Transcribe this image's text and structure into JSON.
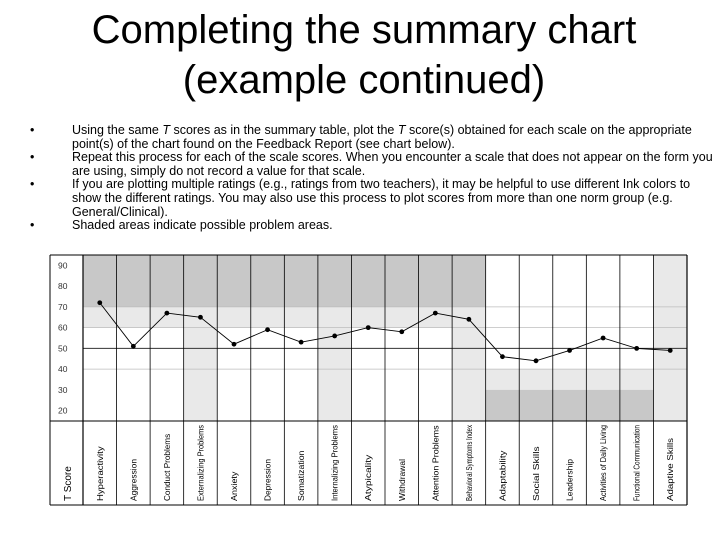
{
  "slide": {
    "title_line1": "Completing the summary chart",
    "title_line2": "(example continued)",
    "bullets": [
      {
        "parts": [
          "Using the same ",
          "T",
          " scores as in the summary table, plot the ",
          "T",
          " score(s) obtained for each scale on the appropriate point(s) of the chart found on the Feedback Report (see chart below)."
        ]
      },
      {
        "parts": [
          "Repeat this process for each of the scale scores. When you encounter a scale that does not appear on the form you are using, simply do not record a value for that scale."
        ]
      },
      {
        "parts": [
          "If you are plotting multiple ratings (e.g., ratings from two teachers), it may be helpful to use different Ink colors to show the different ratings. You may also use this process to plot scores from more than one norm group (e.g. General/Clinical)."
        ]
      },
      {
        "parts": [
          "Shaded areas indicate possible problem areas."
        ]
      }
    ]
  },
  "chart_data": {
    "type": "line",
    "ylabel": "T Score",
    "ylim": [
      15,
      95
    ],
    "yticks": [
      20,
      30,
      40,
      50,
      60,
      70,
      80,
      90
    ],
    "grid": true,
    "categories": [
      "Hyperactivity",
      "Aggression",
      "Conduct Problems",
      "Externalizing Problems",
      "Anxiety",
      "Depression",
      "Somatization",
      "Internalizing Problems",
      "Atypicality",
      "Withdrawal",
      "Attention Problems",
      "Behavioral Symptoms Index",
      "Adaptability",
      "Social Skills",
      "Leadership",
      "Activities of Daily Living",
      "Functional Communication",
      "Adaptive Skills"
    ],
    "composites": [
      "Externalizing Problems",
      "Internalizing Problems",
      "Behavioral Symptoms Index",
      "Adaptive Skills"
    ],
    "series": [
      {
        "values": [
          72,
          51,
          67,
          65,
          52,
          59,
          53,
          56,
          60,
          58,
          67,
          64,
          46,
          44,
          49,
          55,
          50,
          49
        ]
      }
    ],
    "shading": {
      "clinical_scales": {
        "at_risk": [
          60,
          70
        ],
        "clinically_significant": [
          70,
          95
        ]
      },
      "adaptive_scales": {
        "at_risk": [
          30,
          40
        ],
        "clinically_significant": [
          15,
          30
        ]
      }
    },
    "colors": {
      "dark_band": "#c8c8c8",
      "light_band": "#e9e9e9",
      "composite_column": "#e9e9e9",
      "line": "#000000"
    }
  }
}
